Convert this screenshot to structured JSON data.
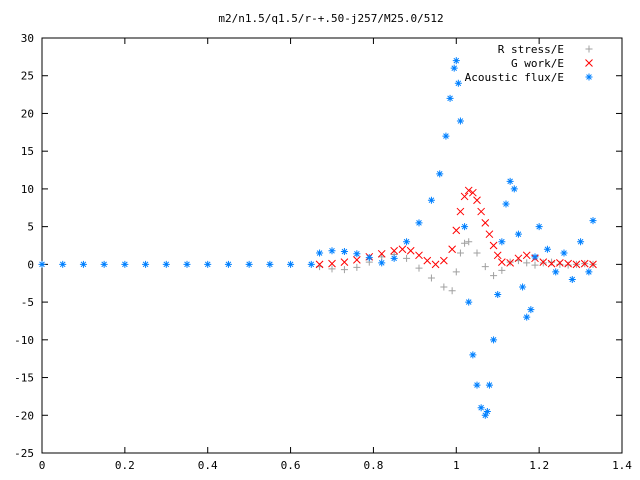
{
  "chart_data": {
    "type": "scatter",
    "title": "m2/n1.5/q1.5/r-+.50-j257/M25.0/512",
    "xlabel": "",
    "ylabel": "",
    "xlim": [
      0,
      1.4
    ],
    "ylim": [
      -25,
      30
    ],
    "xticks": [
      0,
      0.2,
      0.4,
      0.6,
      0.8,
      1,
      1.2,
      1.4
    ],
    "xtick_labels": [
      "0",
      "0.2",
      "0.4",
      "0.6",
      "0.8",
      "1",
      "1.2",
      "1.4"
    ],
    "yticks": [
      -25,
      -20,
      -15,
      -10,
      -5,
      0,
      5,
      10,
      15,
      20,
      25,
      30
    ],
    "ytick_labels": [
      "-25",
      "-20",
      "-15",
      "-10",
      "-5",
      "0",
      "5",
      "10",
      "15",
      "20",
      "25",
      "30"
    ],
    "grid": false,
    "legend_position": "top-right",
    "series": [
      {
        "name": "R stress/E",
        "marker": "+",
        "color": "#a0a0a0",
        "x": [
          0.67,
          0.7,
          0.73,
          0.76,
          0.79,
          0.82,
          0.85,
          0.88,
          0.91,
          0.94,
          0.97,
          0.99,
          1.0,
          1.01,
          1.02,
          1.03,
          1.05,
          1.07,
          1.09,
          1.11,
          1.13,
          1.15,
          1.17,
          1.19,
          1.21,
          1.23,
          1.25,
          1.27,
          1.29,
          1.31,
          1.33
        ],
        "y": [
          -0.3,
          -0.6,
          -0.7,
          -0.4,
          0.3,
          1.0,
          1.3,
          0.8,
          -0.5,
          -1.8,
          -3.0,
          -3.5,
          -1.0,
          1.5,
          2.8,
          3.0,
          1.5,
          -0.3,
          -1.5,
          -0.8,
          0.3,
          0.5,
          0.2,
          -0.1,
          0.2,
          0.3,
          0.0,
          -0.1,
          0.0,
          0.1,
          0.0
        ]
      },
      {
        "name": "G work/E",
        "marker": "x",
        "color": "#ff0000",
        "x": [
          0.67,
          0.7,
          0.73,
          0.76,
          0.79,
          0.82,
          0.85,
          0.87,
          0.89,
          0.91,
          0.93,
          0.95,
          0.97,
          0.99,
          1.0,
          1.01,
          1.02,
          1.03,
          1.04,
          1.05,
          1.06,
          1.07,
          1.08,
          1.09,
          1.1,
          1.11,
          1.13,
          1.15,
          1.17,
          1.19,
          1.21,
          1.23,
          1.25,
          1.27,
          1.29,
          1.31,
          1.33
        ],
        "y": [
          0.0,
          0.1,
          0.3,
          0.6,
          1.0,
          1.4,
          1.8,
          2.0,
          1.8,
          1.2,
          0.5,
          0.0,
          0.5,
          2.0,
          4.5,
          7.0,
          9.0,
          9.8,
          9.5,
          8.5,
          7.0,
          5.5,
          4.0,
          2.5,
          1.2,
          0.3,
          0.2,
          0.8,
          1.2,
          0.8,
          0.3,
          0.1,
          0.2,
          0.1,
          0.0,
          0.1,
          0.0
        ]
      },
      {
        "name": "Acoustic flux/E",
        "marker": "*",
        "color": "#0080ff",
        "x": [
          0.0,
          0.05,
          0.1,
          0.15,
          0.2,
          0.25,
          0.3,
          0.35,
          0.4,
          0.45,
          0.5,
          0.55,
          0.6,
          0.65,
          0.67,
          0.7,
          0.73,
          0.76,
          0.79,
          0.82,
          0.85,
          0.88,
          0.91,
          0.94,
          0.96,
          0.975,
          0.985,
          0.995,
          1.0,
          1.005,
          1.01,
          1.02,
          1.03,
          1.04,
          1.05,
          1.06,
          1.07,
          1.075,
          1.08,
          1.09,
          1.1,
          1.11,
          1.12,
          1.13,
          1.14,
          1.15,
          1.16,
          1.17,
          1.18,
          1.19,
          1.2,
          1.22,
          1.24,
          1.26,
          1.28,
          1.3,
          1.32,
          1.33
        ],
        "y": [
          0.0,
          0.0,
          0.0,
          0.0,
          0.0,
          0.0,
          0.0,
          0.0,
          0.0,
          0.0,
          0.0,
          0.0,
          0.0,
          0.0,
          1.5,
          1.8,
          1.7,
          1.4,
          0.9,
          0.2,
          0.8,
          3.0,
          5.5,
          8.5,
          12.0,
          17.0,
          22.0,
          26.0,
          27.0,
          24.0,
          19.0,
          5.0,
          -5.0,
          -12.0,
          -16.0,
          -19.0,
          -20.0,
          -19.5,
          -16.0,
          -10.0,
          -4.0,
          3.0,
          8.0,
          11.0,
          10.0,
          4.0,
          -3.0,
          -7.0,
          -6.0,
          1.0,
          5.0,
          2.0,
          -1.0,
          1.5,
          -2.0,
          3.0,
          -1.0,
          5.8
        ]
      }
    ]
  }
}
